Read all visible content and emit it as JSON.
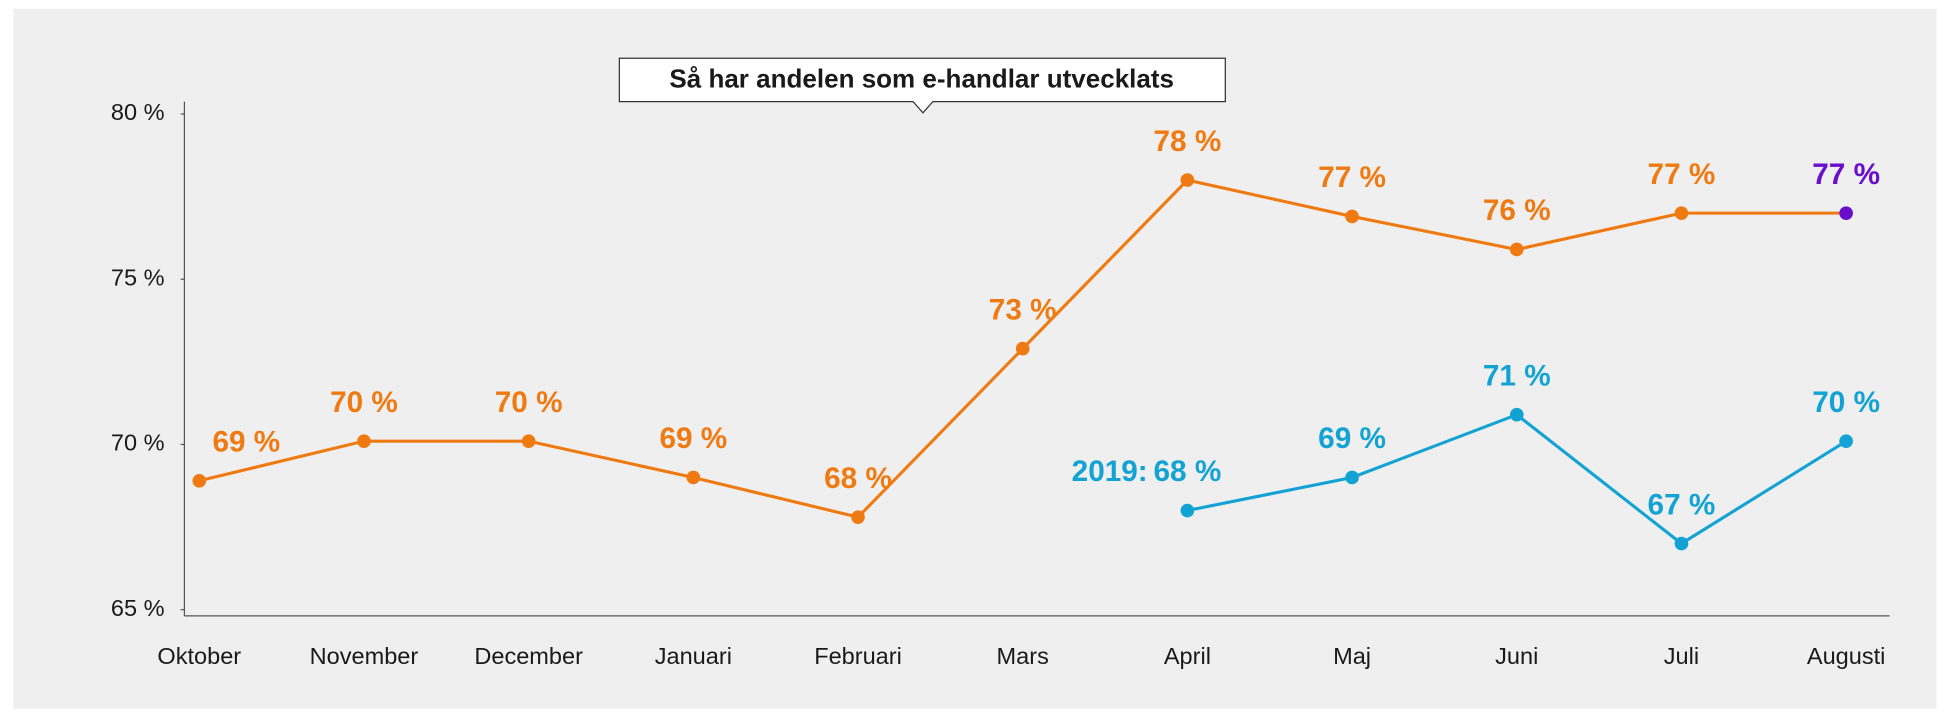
{
  "chart_data": {
    "type": "line",
    "title": "Så har andelen som e-handlar utvecklats",
    "categories": [
      "Oktober",
      "November",
      "December",
      "Januari",
      "Februari",
      "Mars",
      "April",
      "Maj",
      "Juni",
      "Juli",
      "Augusti"
    ],
    "series": [
      {
        "color": "#f07a12",
        "values": [
          68.9,
          70.1,
          70.1,
          69.0,
          67.8,
          72.9,
          78.0,
          76.9,
          75.9,
          77.0,
          77.0
        ],
        "value_labels": [
          "69 %",
          "70 %",
          "70 %",
          "69 %",
          "68 %",
          "73 %",
          "78 %",
          "77 %",
          "76 %",
          "77 %",
          "77 %"
        ],
        "last_point_color": "#6a0dcc"
      },
      {
        "name": "2019:",
        "color": "#12a3d4",
        "values": [
          null,
          null,
          null,
          null,
          null,
          null,
          68.0,
          69.0,
          70.9,
          67.0,
          70.1
        ],
        "value_labels": [
          null,
          null,
          null,
          null,
          null,
          null,
          "68 %",
          "69 %",
          "71 %",
          "67 %",
          "70 %"
        ]
      }
    ],
    "ylim": [
      65,
      80
    ],
    "yticks": [
      {
        "value": 65,
        "label": "65 %"
      },
      {
        "value": 70,
        "label": "70 %"
      },
      {
        "value": 75,
        "label": "75 %"
      },
      {
        "value": 80,
        "label": "80 %"
      }
    ],
    "grid": false
  }
}
